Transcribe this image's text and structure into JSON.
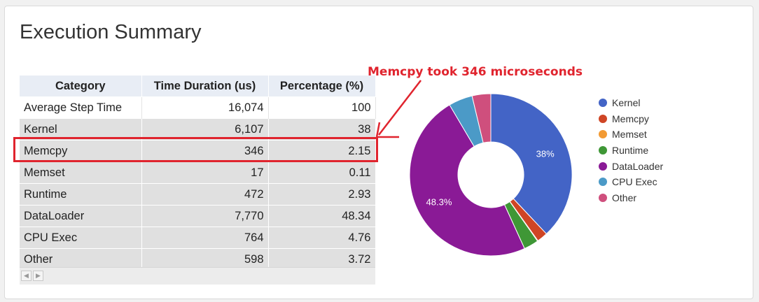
{
  "title": "Execution Summary",
  "table": {
    "headers": [
      "Category",
      "Time Duration (us)",
      "Percentage (%)"
    ],
    "rows": [
      [
        "Average Step Time",
        "16,074",
        "100"
      ],
      [
        "Kernel",
        "6,107",
        "38"
      ],
      [
        "Memcpy",
        "346",
        "2.15"
      ],
      [
        "Memset",
        "17",
        "0.11"
      ],
      [
        "Runtime",
        "472",
        "2.93"
      ],
      [
        "DataLoader",
        "7,770",
        "48.34"
      ],
      [
        "CPU Exec",
        "764",
        "4.76"
      ],
      [
        "Other",
        "598",
        "3.72"
      ]
    ],
    "scroll_left_glyph": "◀",
    "scroll_right_glyph": "▶"
  },
  "annotation": {
    "text": "Memcpy took 346 microseconds",
    "color": "#e0242e"
  },
  "chart_data": {
    "type": "pie",
    "donut": true,
    "legend_position": "right",
    "slices": [
      {
        "name": "Kernel",
        "value": 38,
        "color": "#4364c6",
        "label": "38%"
      },
      {
        "name": "Memcpy",
        "value": 2.15,
        "color": "#cf4525",
        "label": ""
      },
      {
        "name": "Memset",
        "value": 0.11,
        "color": "#f29a33",
        "label": ""
      },
      {
        "name": "Runtime",
        "value": 2.93,
        "color": "#3f9736",
        "label": ""
      },
      {
        "name": "DataLoader",
        "value": 48.34,
        "color": "#8a1a96",
        "label": "48.3%"
      },
      {
        "name": "CPU Exec",
        "value": 4.76,
        "color": "#4b9ac7",
        "label": ""
      },
      {
        "name": "Other",
        "value": 3.72,
        "color": "#cf4f7d",
        "label": ""
      }
    ]
  }
}
